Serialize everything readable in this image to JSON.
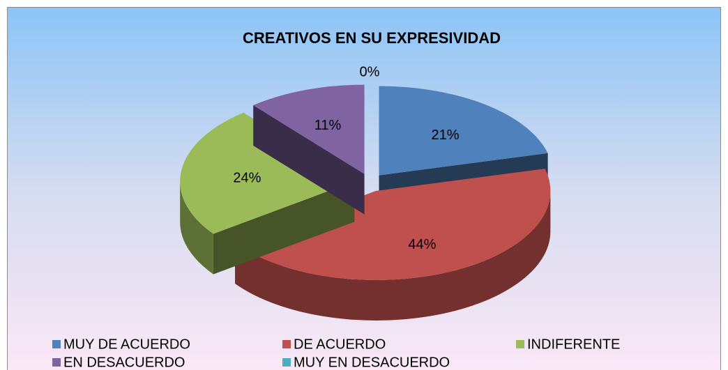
{
  "chart_data": {
    "type": "pie",
    "title": "CREATIVOS EN SU EXPRESIVIDAD",
    "categories": [
      "MUY DE ACUERDO",
      "DE ACUERDO",
      "INDIFERENTE",
      "EN DESACUERDO",
      "MUY EN DESACUERDO"
    ],
    "values": [
      21,
      44,
      24,
      11,
      0
    ],
    "value_labels": [
      "21%",
      "44%",
      "24%",
      "11%",
      "0%"
    ],
    "colors": [
      "#4f81bd",
      "#c0504d",
      "#9bbb59",
      "#8064a2",
      "#4bacc6"
    ],
    "legend": "bottom"
  }
}
